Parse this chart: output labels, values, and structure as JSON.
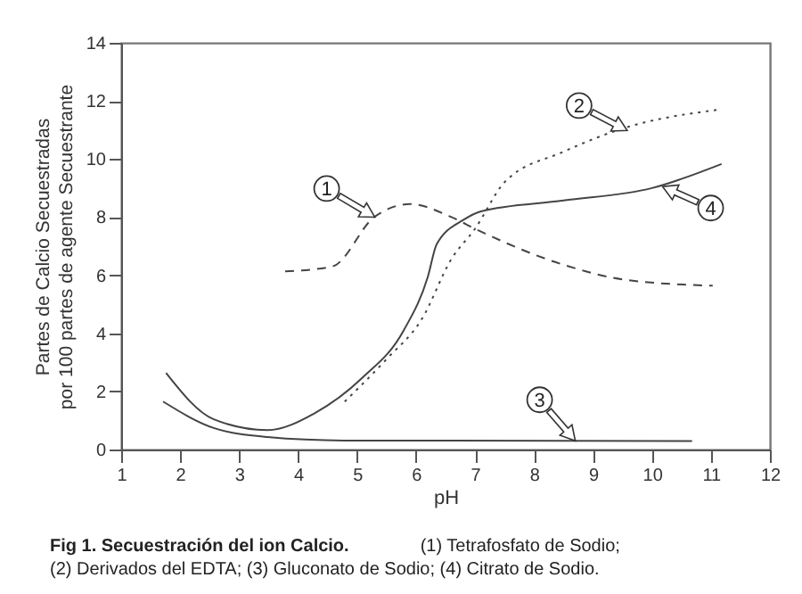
{
  "chart_data": {
    "type": "line",
    "title": "Fig 1. Secuestración del ion Calcio.",
    "subtitle": "(1) Tetrafosfato de Sodio; (2) Derivados del EDTA; (3) Gluconato de Sodio; (4) Citrato de Sodio.",
    "xlabel": "pH",
    "ylabel": "Partes de Calcio Secuestradas\npor 100 partes de agente Secuestrante",
    "xlim": [
      1,
      12
    ],
    "xticks": [
      1,
      2,
      3,
      4,
      5,
      6,
      7,
      8,
      9,
      10,
      11,
      12
    ],
    "ylim": [
      0,
      14
    ],
    "yticks": [
      0,
      2,
      4,
      6,
      8,
      10,
      12,
      14
    ],
    "grid": false,
    "series": [
      {
        "color": "#444444",
        "line_style": "dashed",
        "x": [
          3.78,
          4.58,
          5.29,
          5.9,
          6.6,
          7.0,
          8.5,
          9.52,
          11.03
        ],
        "values": [
          6.13,
          6.3,
          8.0,
          8.45,
          8.0,
          7.6,
          6.36,
          5.85,
          5.64
        ]
      },
      {
        "color": "#444444",
        "line_style": "dotted",
        "x": [
          4.79,
          5.49,
          6.1,
          6.6,
          7.0,
          7.5,
          8.5,
          9.52,
          11.13
        ],
        "values": [
          1.65,
          3.09,
          4.5,
          6.56,
          7.6,
          9.2,
          10.25,
          11.06,
          11.7
        ]
      },
      {
        "color": "#444444",
        "line_style": "solid",
        "x": [
          1.71,
          2.57,
          3.48,
          4.78,
          10.68
        ],
        "values": [
          1.65,
          0.74,
          0.43,
          0.31,
          0.29
        ]
      },
      {
        "color": "#444444",
        "line_style": "solid",
        "x": [
          1.76,
          2.57,
          3.48,
          4.28,
          5.09,
          5.79,
          6.2,
          6.35,
          6.8,
          7.1,
          8.5,
          10.0,
          11.18
        ],
        "values": [
          2.64,
          1.04,
          0.67,
          1.25,
          2.47,
          4.1,
          5.95,
          7.07,
          7.9,
          8.2,
          8.57,
          9.0,
          9.83
        ]
      }
    ],
    "annotations": [
      {
        "text": "1",
        "x": 5.3,
        "y": 8.0
      },
      {
        "text": "2",
        "x": 9.58,
        "y": 10.98
      },
      {
        "text": "3",
        "x": 8.7,
        "y": 0.3
      },
      {
        "text": "4",
        "x": 10.18,
        "y": 9.05
      }
    ]
  }
}
